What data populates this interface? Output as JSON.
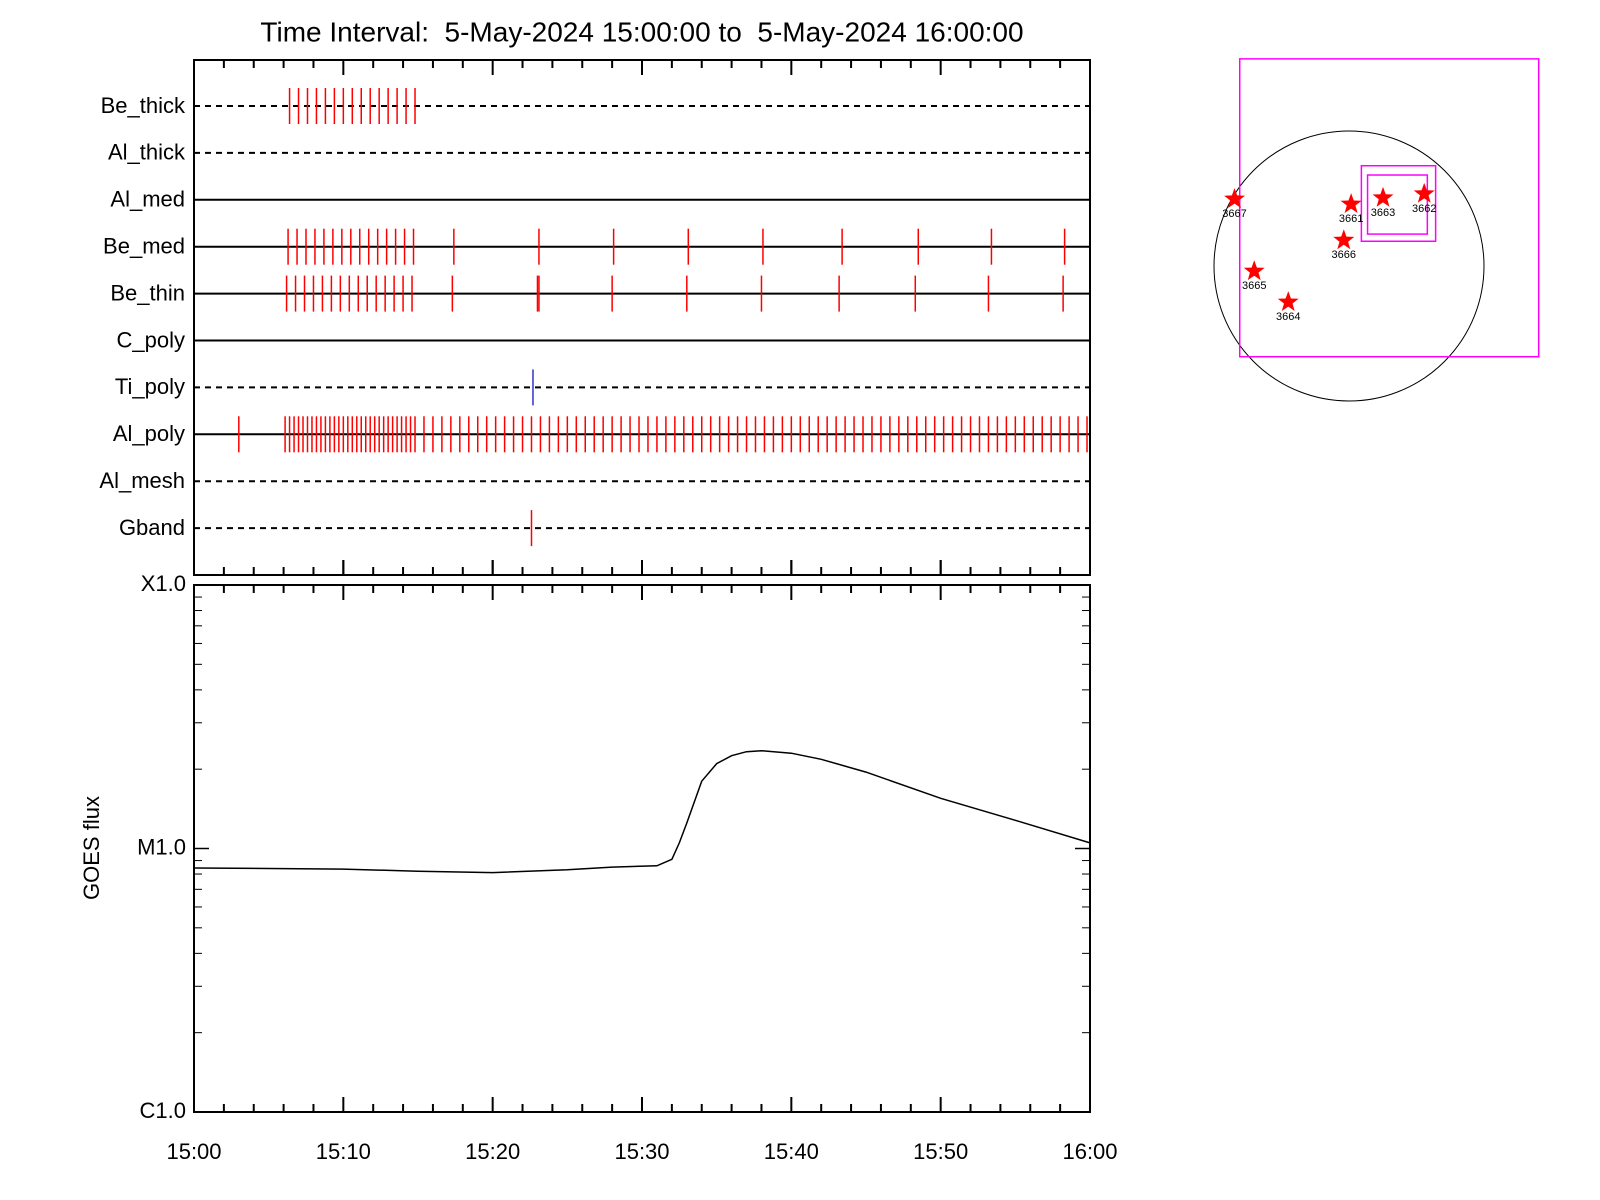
{
  "chart_data": [
    {
      "type": "event",
      "title": "Time Interval:  5-May-2024 15:00:00 to  5-May-2024 16:00:00",
      "xlim": [
        0,
        60
      ],
      "series": [
        {
          "name": "Be_thick",
          "line": "dashed",
          "color": "#ff0000",
          "x": [
            6.4,
            7.0,
            7.6,
            8.2,
            8.8,
            9.4,
            10.0,
            10.6,
            11.2,
            11.8,
            12.4,
            13.0,
            13.6,
            14.2,
            14.8
          ]
        },
        {
          "name": "Al_thick",
          "line": "dashed",
          "color": "#ff0000",
          "x": []
        },
        {
          "name": "Al_med",
          "line": "solid",
          "color": "#ff0000",
          "x": []
        },
        {
          "name": "Be_med",
          "line": "solid",
          "color": "#ff0000",
          "x": [
            6.3,
            6.9,
            7.5,
            8.1,
            8.7,
            9.3,
            9.9,
            10.5,
            11.1,
            11.7,
            12.3,
            12.9,
            13.5,
            14.1,
            14.7,
            17.4,
            23.1,
            28.1,
            33.1,
            38.1,
            43.4,
            48.5,
            53.4,
            58.3
          ]
        },
        {
          "name": "Be_thin",
          "line": "solid",
          "color": "#ff0000",
          "x": [
            6.2,
            6.8,
            7.4,
            8.0,
            8.6,
            9.2,
            9.8,
            10.4,
            11.0,
            11.6,
            12.2,
            12.8,
            13.4,
            14.0,
            14.6,
            17.3,
            23.0,
            23.1,
            28.0,
            33.0,
            38.0,
            43.2,
            48.3,
            53.2,
            58.2
          ]
        },
        {
          "name": "C_poly",
          "line": "solid",
          "color": "#ff0000",
          "x": []
        },
        {
          "name": "Ti_poly",
          "line": "dashed",
          "color": "#3333cc",
          "x": [
            22.7
          ]
        },
        {
          "name": "Al_poly",
          "line": "solid",
          "color": "#ff0000",
          "x": [
            3.0,
            6.1,
            6.4,
            6.7,
            7.0,
            7.3,
            7.6,
            7.9,
            8.2,
            8.5,
            8.8,
            9.1,
            9.4,
            9.7,
            10.0,
            10.3,
            10.6,
            10.9,
            11.2,
            11.5,
            11.8,
            12.1,
            12.4,
            12.7,
            13.0,
            13.3,
            13.6,
            13.9,
            14.2,
            14.5,
            14.8,
            15.4,
            16.0,
            16.6,
            17.2,
            17.8,
            18.4,
            19.0,
            19.6,
            20.2,
            20.8,
            21.4,
            22.0,
            22.6,
            23.2,
            23.8,
            24.4,
            25.0,
            25.6,
            26.2,
            26.8,
            27.4,
            28.0,
            28.6,
            29.2,
            29.8,
            30.4,
            31.0,
            31.6,
            32.2,
            32.8,
            33.4,
            34.0,
            34.6,
            35.2,
            35.8,
            36.4,
            37.0,
            37.6,
            38.2,
            38.8,
            39.4,
            40.0,
            40.6,
            41.2,
            41.8,
            42.4,
            43.0,
            43.6,
            44.2,
            44.8,
            45.4,
            46.0,
            46.6,
            47.2,
            47.8,
            48.4,
            49.0,
            49.6,
            50.2,
            50.8,
            51.4,
            52.0,
            52.6,
            53.2,
            53.8,
            54.4,
            55.0,
            55.6,
            56.2,
            56.8,
            57.4,
            58.0,
            58.6,
            59.2,
            59.8
          ]
        },
        {
          "name": "Al_mesh",
          "line": "dashed",
          "color": "#ff0000",
          "x": []
        },
        {
          "name": "Gband",
          "line": "dashed",
          "color": "#ff0000",
          "x": [
            22.6
          ]
        }
      ]
    },
    {
      "type": "line",
      "ylabel": "GOES flux",
      "xlim": [
        0,
        60
      ],
      "xticks": [
        {
          "value": 0,
          "label": "15:00"
        },
        {
          "value": 10,
          "label": "15:10"
        },
        {
          "value": 20,
          "label": "15:20"
        },
        {
          "value": 30,
          "label": "15:30"
        },
        {
          "value": 40,
          "label": "15:40"
        },
        {
          "value": 50,
          "label": "15:50"
        },
        {
          "value": 60,
          "label": "16:00"
        }
      ],
      "log_y": true,
      "ylim": [
        1e-06,
        0.0001
      ],
      "yticks": [
        {
          "value": 1e-06,
          "label": "C1.0"
        },
        {
          "value": 1e-05,
          "label": "M1.0"
        },
        {
          "value": 0.0001,
          "label": "X1.0"
        }
      ],
      "color": "#000000",
      "x": [
        0,
        5,
        10,
        15,
        20,
        25,
        28,
        31,
        32,
        32.5,
        33,
        34,
        35,
        36,
        37,
        38,
        40,
        42,
        45,
        50,
        55,
        60
      ],
      "values": [
        8.43e-06,
        8.4e-06,
        8.35e-06,
        8.2e-06,
        8.1e-06,
        8.3e-06,
        8.5e-06,
        8.6e-06,
        9.1e-06,
        1.05e-05,
        1.25e-05,
        1.8e-05,
        2.1e-05,
        2.25e-05,
        2.33e-05,
        2.35e-05,
        2.3e-05,
        2.18e-05,
        1.95e-05,
        1.55e-05,
        1.28e-05,
        1.05e-05
      ]
    },
    {
      "type": "map",
      "disk_radius": 960,
      "boxes": [
        {
          "x": [
            -777,
            1349
          ],
          "y": [
            1473,
            -645
          ],
          "color": "#ff00ff"
        },
        {
          "x": [
            88,
            616
          ],
          "y": [
            713,
            176
          ],
          "color": "#ff00ff"
        },
        {
          "x": [
            132,
            557
          ],
          "y": [
            647,
            227
          ],
          "color": "#ff00ff"
        }
      ],
      "points": {
        "color": "#ff0000",
        "labels": [
          "3667",
          "3661",
          "3663",
          "3662",
          "3666",
          "3665",
          "3664"
        ],
        "x": [
          -814,
          15,
          242,
          535,
          -37,
          -674,
          -432
        ],
        "y": [
          476,
          440,
          484,
          513,
          183,
          -37,
          -257
        ]
      }
    }
  ]
}
